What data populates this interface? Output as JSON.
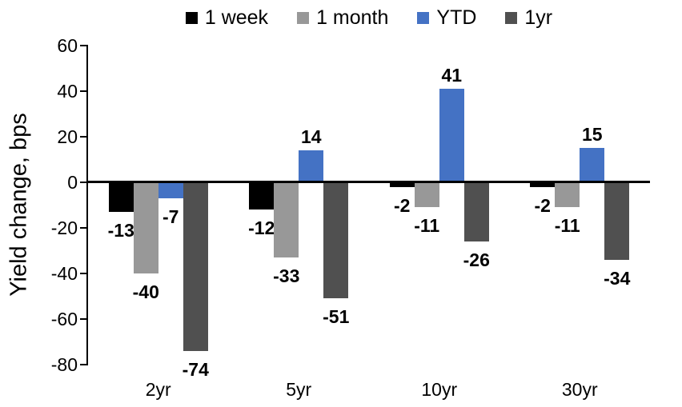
{
  "chart_data": {
    "type": "bar",
    "title": "",
    "ylabel": "Yield change, bps",
    "xlabel": "",
    "categories": [
      "2yr",
      "5yr",
      "10yr",
      "30yr"
    ],
    "series": [
      {
        "name": "1 week",
        "color": "#000000",
        "values": [
          -13,
          -12,
          -2,
          -2
        ]
      },
      {
        "name": "1 month",
        "color": "#989898",
        "values": [
          -40,
          -33,
          -11,
          -11
        ]
      },
      {
        "name": "YTD",
        "color": "#4472C4",
        "values": [
          -7,
          14,
          41,
          15
        ]
      },
      {
        "name": "1yr",
        "color": "#505050",
        "values": [
          -74,
          -51,
          -26,
          -34
        ]
      }
    ],
    "ylim": [
      -80,
      60
    ],
    "yticks": [
      60,
      40,
      20,
      0,
      -20,
      -40,
      -60,
      -80
    ],
    "grid": false,
    "legend_position": "top",
    "data_labels": true,
    "axis_color": "#000000",
    "text_color": "#000000"
  }
}
